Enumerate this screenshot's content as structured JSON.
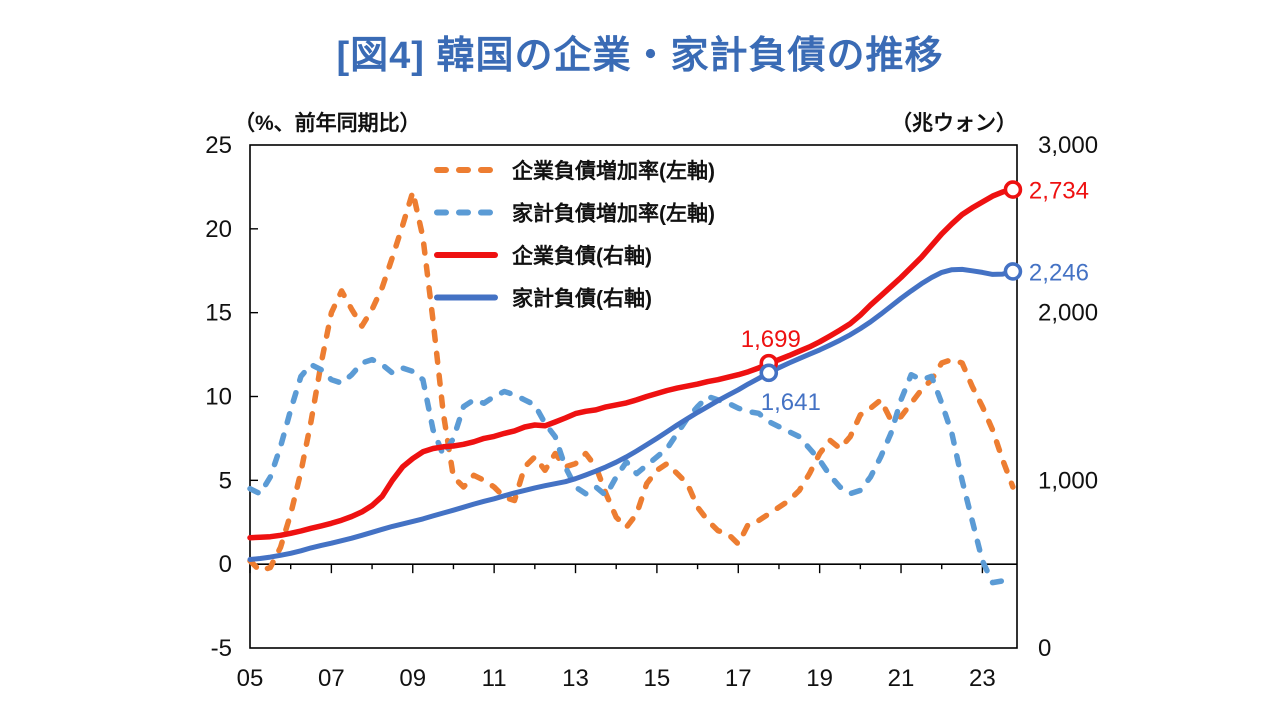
{
  "title": "[図4] 韓国の企業・家計負債の推移",
  "chart_data": {
    "type": "line",
    "x_start": 2005,
    "x_step": 0.25,
    "x_axis": {
      "range": [
        2005,
        2023.85
      ],
      "tick_labels": [
        "05",
        "07",
        "09",
        "11",
        "13",
        "15",
        "17",
        "19",
        "21",
        "23"
      ],
      "tick_years": [
        2005,
        2007,
        2009,
        2011,
        2013,
        2015,
        2017,
        2019,
        2021,
        2023
      ],
      "minor_tick_years": [
        2005,
        2006,
        2007,
        2008,
        2009,
        2010,
        2011,
        2012,
        2013,
        2014,
        2015,
        2016,
        2017,
        2018,
        2019,
        2020,
        2021,
        2022,
        2023
      ]
    },
    "left_axis": {
      "label": "（%、前年同期比）",
      "range": [
        -5,
        25
      ],
      "ticks": [
        25,
        20,
        15,
        10,
        5,
        0,
        -5
      ]
    },
    "right_axis": {
      "label": "（兆ウォン）",
      "range": [
        0,
        3000
      ],
      "ticks": [
        3000,
        2000,
        1000,
        0
      ],
      "tick_labels": [
        "3,000",
        "2,000",
        "1,000",
        "0"
      ]
    },
    "grid": "off",
    "legend_position": "top-center-inside",
    "series": [
      {
        "id": "corp-debt-growth",
        "name": "企業負債増加率(左軸)",
        "axis": "left",
        "style": "dashed",
        "color": "#ED7D31",
        "values": [
          0.2,
          -0.4,
          -0.2,
          1.0,
          3.0,
          5.5,
          8.5,
          12.0,
          15.0,
          16.3,
          15.2,
          14.2,
          15.2,
          16.5,
          18.3,
          20.2,
          22.2,
          19.5,
          14.5,
          9.0,
          5.2,
          4.6,
          5.3,
          5.0,
          4.6,
          4.0,
          3.8,
          5.8,
          6.4,
          5.6,
          6.6,
          5.8,
          6.0,
          6.6,
          5.8,
          4.2,
          2.8,
          2.2,
          3.0,
          4.8,
          5.6,
          6.0,
          5.4,
          4.8,
          3.4,
          2.6,
          2.0,
          1.8,
          1.2,
          2.4,
          2.6,
          3.0,
          3.4,
          3.8,
          4.4,
          5.4,
          6.6,
          7.4,
          6.9,
          7.6,
          8.9,
          9.3,
          9.8,
          8.6,
          8.8,
          9.6,
          10.4,
          11.0,
          12.0,
          12.2,
          12.0,
          10.6,
          9.4,
          8.0,
          6.2,
          4.6
        ]
      },
      {
        "id": "household-debt-growth",
        "name": "家計負債増加率(左軸)",
        "axis": "left",
        "style": "dashed",
        "color": "#5B9BD5",
        "values": [
          4.5,
          4.2,
          5.2,
          7.0,
          9.2,
          11.2,
          11.9,
          11.6,
          11.0,
          10.8,
          11.3,
          12.0,
          12.2,
          11.9,
          11.4,
          11.7,
          11.5,
          11.0,
          8.0,
          6.5,
          7.5,
          9.4,
          9.8,
          9.6,
          10.0,
          10.3,
          10.1,
          9.8,
          9.5,
          8.4,
          7.6,
          5.8,
          4.6,
          4.2,
          4.6,
          4.1,
          5.2,
          6.1,
          5.4,
          5.9,
          6.4,
          6.9,
          7.8,
          8.7,
          9.4,
          10.0,
          9.8,
          9.6,
          9.3,
          9.1,
          9.0,
          8.5,
          8.2,
          7.9,
          7.6,
          6.9,
          6.2,
          5.3,
          4.6,
          4.2,
          4.4,
          5.2,
          6.4,
          7.8,
          9.8,
          11.3,
          11.0,
          11.2,
          9.6,
          7.8,
          5.0,
          2.6,
          0.2,
          -1.1,
          -1.0,
          -0.8
        ]
      },
      {
        "id": "corp-debt",
        "name": "企業負債(右軸)",
        "axis": "right",
        "style": "solid",
        "color": "#EE1111",
        "values": [
          658,
          660,
          664,
          672,
          684,
          698,
          714,
          728,
          744,
          762,
          784,
          812,
          850,
          905,
          1000,
          1080,
          1130,
          1170,
          1190,
          1200,
          1205,
          1215,
          1230,
          1250,
          1262,
          1280,
          1295,
          1318,
          1330,
          1325,
          1348,
          1372,
          1398,
          1412,
          1420,
          1438,
          1450,
          1462,
          1480,
          1500,
          1518,
          1536,
          1550,
          1562,
          1574,
          1589,
          1600,
          1615,
          1630,
          1648,
          1670,
          1699,
          1720,
          1744,
          1770,
          1796,
          1826,
          1860,
          1896,
          1934,
          1985,
          2045,
          2100,
          2155,
          2210,
          2270,
          2330,
          2400,
          2470,
          2530,
          2585,
          2625,
          2660,
          2695,
          2720,
          2734
        ]
      },
      {
        "id": "household-debt",
        "name": "家計負債(右軸)",
        "axis": "right",
        "style": "solid",
        "color": "#4472C4",
        "values": [
          528,
          534,
          542,
          553,
          565,
          580,
          597,
          612,
          625,
          640,
          655,
          672,
          690,
          708,
          725,
          740,
          755,
          770,
          788,
          805,
          822,
          840,
          858,
          875,
          890,
          908,
          925,
          940,
          955,
          968,
          980,
          992,
          1010,
          1032,
          1055,
          1080,
          1108,
          1140,
          1175,
          1212,
          1250,
          1290,
          1330,
          1368,
          1405,
          1440,
          1475,
          1508,
          1540,
          1575,
          1608,
          1641,
          1672,
          1700,
          1726,
          1752,
          1778,
          1806,
          1836,
          1868,
          1905,
          1945,
          1990,
          2038,
          2085,
          2130,
          2172,
          2210,
          2240,
          2256,
          2258,
          2250,
          2240,
          2228,
          2230,
          2246
        ]
      }
    ],
    "annotations": [
      {
        "id": "corp-debt-2017",
        "text": "1,699",
        "x": 2017.75,
        "value": 1699,
        "axis": "right",
        "color": "#EE1111",
        "placement": "above",
        "marker": true
      },
      {
        "id": "household-debt-2017",
        "text": "1,641",
        "x": 2017.75,
        "value": 1641,
        "axis": "right",
        "color": "#4472C4",
        "placement": "below",
        "marker": true
      },
      {
        "id": "corp-debt-latest",
        "text": "2,734",
        "x": 2023.75,
        "value": 2734,
        "axis": "right",
        "color": "#EE1111",
        "placement": "right",
        "marker": true
      },
      {
        "id": "household-debt-latest",
        "text": "2,246",
        "x": 2023.75,
        "value": 2246,
        "axis": "right",
        "color": "#4472C4",
        "placement": "right",
        "marker": true
      }
    ]
  }
}
